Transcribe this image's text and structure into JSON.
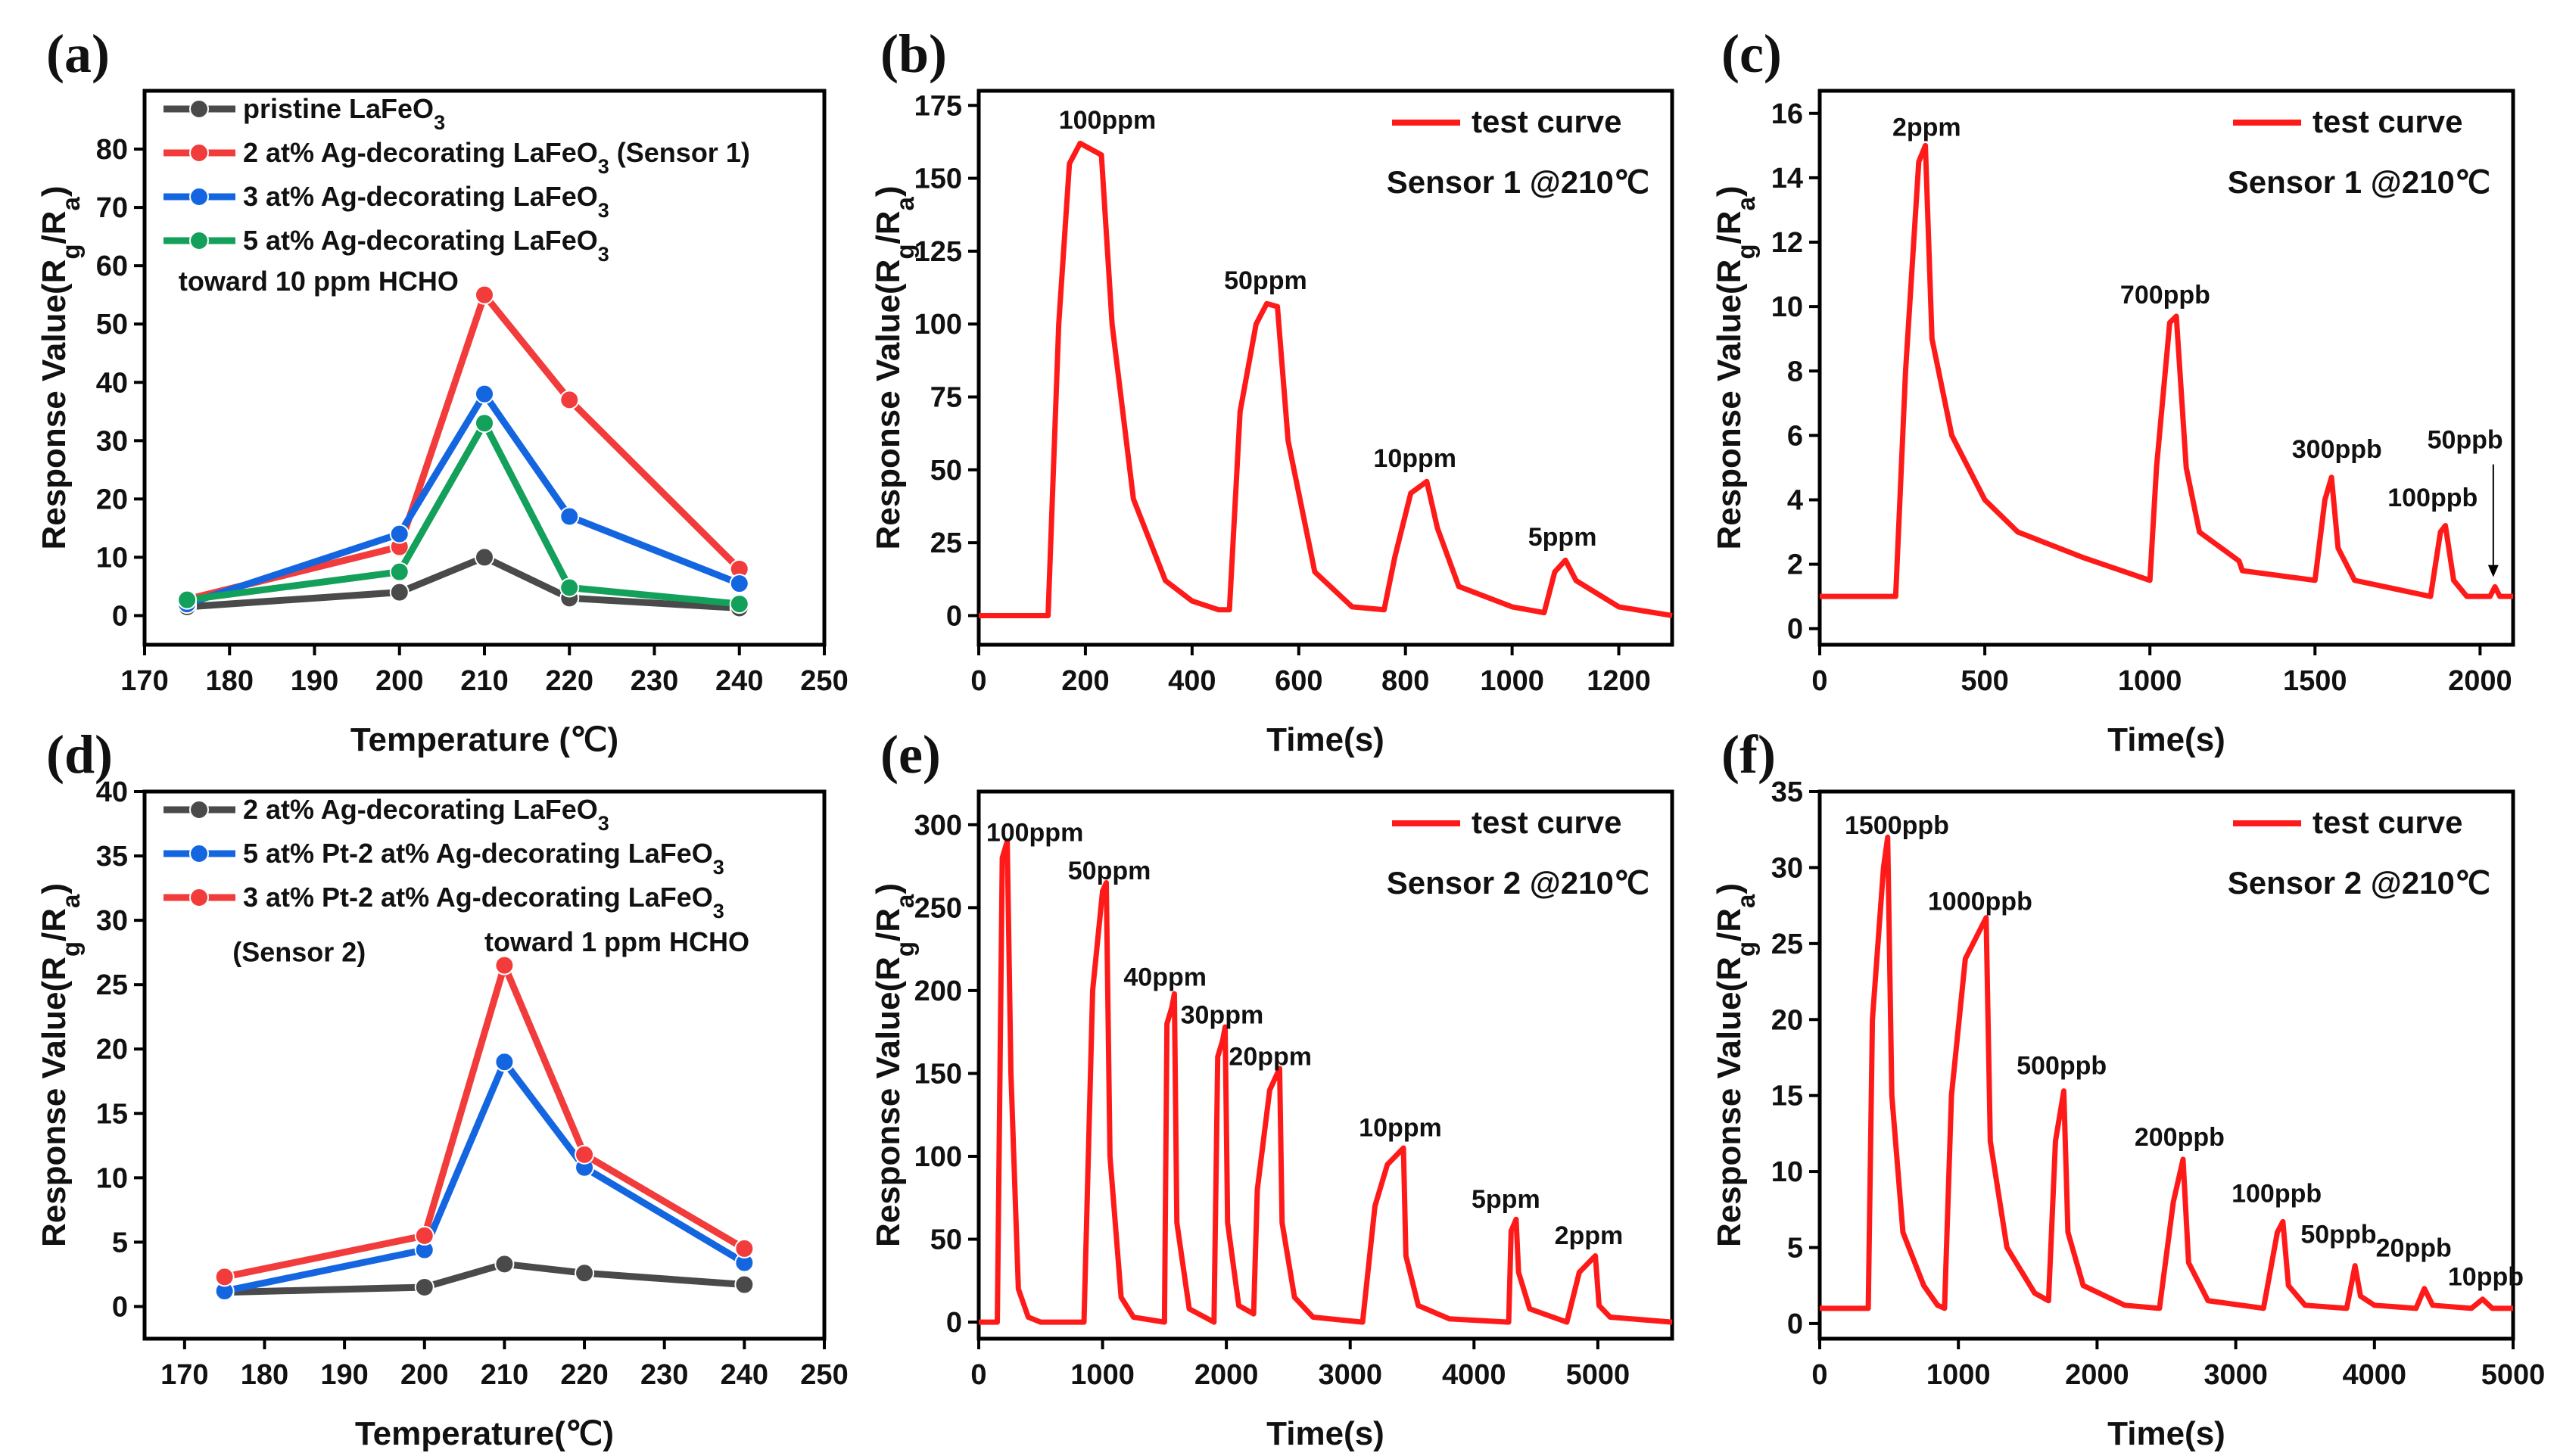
{
  "chart_data": [
    {
      "panel": "(a)",
      "type": "line",
      "xlabel": "Temperature (℃)",
      "ylabel": "Response Value(Rg/Ra)",
      "xlim": [
        170,
        250
      ],
      "ylim": [
        -5,
        90
      ],
      "xticks": [
        170,
        180,
        190,
        200,
        210,
        220,
        230,
        240,
        250
      ],
      "yticks": [
        0,
        10,
        20,
        30,
        40,
        50,
        60,
        70,
        80
      ],
      "x": [
        175,
        200,
        210,
        220,
        240
      ],
      "series": [
        {
          "name": "pristine LaFeO3",
          "color": "#4a4a4a",
          "values": [
            1.5,
            4,
            10,
            3,
            1.3
          ]
        },
        {
          "name": "2 at% Ag-decorating LaFeO3 (Sensor 1)",
          "color": "#f23c3c",
          "values": [
            2.8,
            11.8,
            55,
            37,
            8
          ]
        },
        {
          "name": "3 at% Ag-decorating LaFeO3",
          "color": "#1466e0",
          "values": [
            2,
            14,
            38,
            17,
            5.5
          ]
        },
        {
          "name": "5 at% Ag-decorating LaFeO3",
          "color": "#12a05a",
          "values": [
            2.7,
            7.5,
            33,
            4.8,
            2
          ]
        }
      ],
      "annotations": [
        {
          "text": "toward 10 ppm HCHO",
          "x": 174,
          "y": 62.5
        }
      ],
      "legend": "top-left"
    },
    {
      "panel": "(b)",
      "type": "line",
      "xlabel": "Time(s)",
      "ylabel": "Response Value(Rg/Ra)",
      "xlim": [
        0,
        1300
      ],
      "ylim": [
        -10,
        180
      ],
      "xticks": [
        0,
        200,
        400,
        600,
        800,
        1000,
        1200
      ],
      "yticks": [
        0,
        25,
        50,
        75,
        100,
        125,
        150,
        175
      ],
      "series": [
        {
          "name": "test curve",
          "color": "#ff1a1a",
          "points": [
            [
              0,
              0
            ],
            [
              130,
              0
            ],
            [
              150,
              100
            ],
            [
              170,
              155
            ],
            [
              190,
              162
            ],
            [
              230,
              158
            ],
            [
              250,
              100
            ],
            [
              290,
              40
            ],
            [
              350,
              12
            ],
            [
              400,
              5
            ],
            [
              450,
              2
            ],
            [
              470,
              2
            ],
            [
              490,
              70
            ],
            [
              520,
              100
            ],
            [
              540,
              107
            ],
            [
              560,
              106
            ],
            [
              580,
              60
            ],
            [
              630,
              15
            ],
            [
              700,
              3
            ],
            [
              760,
              2
            ],
            [
              780,
              20
            ],
            [
              810,
              42
            ],
            [
              840,
              46
            ],
            [
              860,
              30
            ],
            [
              900,
              10
            ],
            [
              1000,
              3
            ],
            [
              1060,
              1
            ],
            [
              1080,
              15
            ],
            [
              1100,
              19
            ],
            [
              1120,
              12
            ],
            [
              1200,
              3
            ],
            [
              1300,
              0
            ]
          ]
        }
      ],
      "subtitle": "Sensor 1 @210℃",
      "annotations": [
        {
          "text": "100ppm",
          "x": 150,
          "y": 167
        },
        {
          "text": "50ppm",
          "x": 460,
          "y": 112
        },
        {
          "text": "10ppm",
          "x": 740,
          "y": 51
        },
        {
          "text": "5ppm",
          "x": 1030,
          "y": 24
        }
      ],
      "legend": "top-right"
    },
    {
      "panel": "(c)",
      "type": "line",
      "xlabel": "Time(s)",
      "ylabel": "Response Value(Rg/Ra)",
      "xlim": [
        0,
        2100
      ],
      "ylim": [
        -0.5,
        16.7
      ],
      "xticks": [
        0,
        500,
        1000,
        1500,
        2000
      ],
      "yticks": [
        0,
        2,
        4,
        6,
        8,
        10,
        12,
        14,
        16
      ],
      "series": [
        {
          "name": "test curve",
          "color": "#ff1a1a",
          "points": [
            [
              0,
              1
            ],
            [
              230,
              1
            ],
            [
              260,
              8
            ],
            [
              300,
              14.5
            ],
            [
              320,
              15
            ],
            [
              340,
              9
            ],
            [
              400,
              6
            ],
            [
              500,
              4
            ],
            [
              600,
              3
            ],
            [
              800,
              2.2
            ],
            [
              1000,
              1.5
            ],
            [
              1020,
              5
            ],
            [
              1060,
              9.5
            ],
            [
              1080,
              9.7
            ],
            [
              1110,
              5
            ],
            [
              1150,
              3
            ],
            [
              1270,
              2.1
            ],
            [
              1280,
              1.8
            ],
            [
              1500,
              1.5
            ],
            [
              1530,
              4
            ],
            [
              1550,
              4.7
            ],
            [
              1570,
              2.5
            ],
            [
              1620,
              1.5
            ],
            [
              1850,
              1
            ],
            [
              1880,
              3
            ],
            [
              1895,
              3.2
            ],
            [
              1920,
              1.5
            ],
            [
              1960,
              1
            ],
            [
              2030,
              1
            ],
            [
              2045,
              1.3
            ],
            [
              2060,
              1
            ],
            [
              2100,
              1
            ]
          ]
        }
      ],
      "subtitle": "Sensor 1 @210℃",
      "annotations": [
        {
          "text": "2ppm",
          "x": 220,
          "y": 15.3
        },
        {
          "text": "700ppb",
          "x": 910,
          "y": 10.1
        },
        {
          "text": "300ppb",
          "x": 1430,
          "y": 5.3
        },
        {
          "text": "100ppb",
          "x": 1720,
          "y": 3.8
        },
        {
          "text": "50ppb",
          "x": 1840,
          "y": 5.6
        }
      ],
      "arrow": {
        "from": [
          2040,
          5.1
        ],
        "to": [
          2040,
          1.6
        ]
      },
      "legend": "top-right"
    },
    {
      "panel": "(d)",
      "type": "line",
      "xlabel": "Temperature(℃)",
      "ylabel": "Response Value(Rg/Ra)",
      "xlim": [
        165,
        250
      ],
      "ylim": [
        -2.5,
        40
      ],
      "xticks": [
        170,
        180,
        190,
        200,
        210,
        220,
        230,
        240,
        250
      ],
      "yticks": [
        0,
        5,
        10,
        15,
        20,
        25,
        30,
        35,
        40
      ],
      "x": [
        175,
        200,
        210,
        220,
        240
      ],
      "series": [
        {
          "name": "2 at% Ag-decorating LaFeO3",
          "color": "#4a4a4a",
          "values": [
            1.1,
            1.5,
            3.3,
            2.6,
            1.7
          ]
        },
        {
          "name": "5 at% Pt-2 at% Ag-decorating LaFeO3",
          "color": "#1466e0",
          "values": [
            1.2,
            4.4,
            19,
            10.8,
            3.4
          ]
        },
        {
          "name": "3 at% Pt-2 at% Ag-decorating LaFeO3",
          "color": "#f23c3c",
          "values": [
            2.3,
            5.5,
            26.5,
            11.8,
            4.5
          ]
        }
      ],
      "annotations": [
        {
          "text": "(Sensor 2)",
          "x": 176,
          "y": 26.8
        },
        {
          "text": "toward 1 ppm HCHO",
          "x": 207.5,
          "y": 27.6
        }
      ],
      "legend": "top-left"
    },
    {
      "panel": "(e)",
      "type": "line",
      "xlabel": "Time(s)",
      "ylabel": "Response Value(Rg/Ra)",
      "xlim": [
        0,
        5600
      ],
      "ylim": [
        -10,
        320
      ],
      "xticks": [
        0,
        1000,
        2000,
        3000,
        4000,
        5000
      ],
      "yticks": [
        0,
        50,
        100,
        150,
        200,
        250,
        300
      ],
      "series": [
        {
          "name": "test curve",
          "color": "#ff1a1a",
          "points": [
            [
              0,
              0
            ],
            [
              150,
              0
            ],
            [
              190,
              280
            ],
            [
              230,
              290
            ],
            [
              260,
              150
            ],
            [
              320,
              20
            ],
            [
              400,
              3
            ],
            [
              500,
              0
            ],
            [
              850,
              0
            ],
            [
              920,
              200
            ],
            [
              1000,
              260
            ],
            [
              1030,
              265
            ],
            [
              1060,
              100
            ],
            [
              1150,
              15
            ],
            [
              1250,
              3
            ],
            [
              1500,
              0
            ],
            [
              1520,
              180
            ],
            [
              1560,
              190
            ],
            [
              1580,
              198
            ],
            [
              1600,
              60
            ],
            [
              1700,
              8
            ],
            [
              1900,
              0
            ],
            [
              1930,
              160
            ],
            [
              1970,
              170
            ],
            [
              1990,
              178
            ],
            [
              2010,
              60
            ],
            [
              2100,
              10
            ],
            [
              2220,
              5
            ],
            [
              2250,
              80
            ],
            [
              2350,
              140
            ],
            [
              2430,
              153
            ],
            [
              2450,
              60
            ],
            [
              2550,
              15
            ],
            [
              2700,
              3
            ],
            [
              3100,
              0
            ],
            [
              3200,
              70
            ],
            [
              3300,
              95
            ],
            [
              3430,
              105
            ],
            [
              3450,
              40
            ],
            [
              3550,
              10
            ],
            [
              3800,
              2
            ],
            [
              4280,
              0
            ],
            [
              4300,
              55
            ],
            [
              4340,
              62
            ],
            [
              4360,
              30
            ],
            [
              4450,
              8
            ],
            [
              4750,
              0
            ],
            [
              4850,
              30
            ],
            [
              4980,
              40
            ],
            [
              5010,
              10
            ],
            [
              5100,
              3
            ],
            [
              5600,
              0
            ]
          ]
        }
      ],
      "subtitle": "Sensor 2 @210℃",
      "annotations": [
        {
          "text": "100ppm",
          "x": 60,
          "y": 290
        },
        {
          "text": "50ppm",
          "x": 720,
          "y": 267
        },
        {
          "text": "40ppm",
          "x": 1170,
          "y": 203
        },
        {
          "text": "30ppm",
          "x": 1630,
          "y": 180
        },
        {
          "text": "20ppm",
          "x": 2020,
          "y": 155
        },
        {
          "text": "10ppm",
          "x": 3070,
          "y": 112
        },
        {
          "text": "5ppm",
          "x": 3980,
          "y": 69
        },
        {
          "text": "2ppm",
          "x": 4650,
          "y": 47
        }
      ],
      "legend": "top-right"
    },
    {
      "panel": "(f)",
      "type": "line",
      "xlabel": "Time(s)",
      "ylabel": "Response Value(Rg/Ra)",
      "xlim": [
        0,
        5000
      ],
      "ylim": [
        -1,
        35
      ],
      "xticks": [
        0,
        1000,
        2000,
        3000,
        4000,
        5000
      ],
      "yticks": [
        0,
        5,
        10,
        15,
        20,
        25,
        30,
        35
      ],
      "series": [
        {
          "name": "test curve",
          "color": "#ff1a1a",
          "points": [
            [
              0,
              1
            ],
            [
              350,
              1
            ],
            [
              380,
              20
            ],
            [
              460,
              30
            ],
            [
              490,
              32
            ],
            [
              520,
              15
            ],
            [
              600,
              6
            ],
            [
              750,
              2.5
            ],
            [
              850,
              1.2
            ],
            [
              900,
              1
            ],
            [
              950,
              15
            ],
            [
              1050,
              24
            ],
            [
              1200,
              26.7
            ],
            [
              1230,
              12
            ],
            [
              1350,
              5
            ],
            [
              1550,
              2
            ],
            [
              1650,
              1.5
            ],
            [
              1700,
              12
            ],
            [
              1760,
              15.3
            ],
            [
              1790,
              6
            ],
            [
              1900,
              2.5
            ],
            [
              2200,
              1.2
            ],
            [
              2450,
              1
            ],
            [
              2550,
              8
            ],
            [
              2620,
              10.8
            ],
            [
              2660,
              4
            ],
            [
              2800,
              1.5
            ],
            [
              3200,
              1
            ],
            [
              3300,
              6
            ],
            [
              3340,
              6.7
            ],
            [
              3380,
              2.5
            ],
            [
              3500,
              1.2
            ],
            [
              3800,
              1
            ],
            [
              3860,
              3.8
            ],
            [
              3900,
              1.8
            ],
            [
              4000,
              1.2
            ],
            [
              4300,
              1
            ],
            [
              4360,
              2.3
            ],
            [
              4420,
              1.2
            ],
            [
              4700,
              1
            ],
            [
              4780,
              1.6
            ],
            [
              4850,
              1
            ],
            [
              5000,
              1
            ]
          ]
        }
      ],
      "subtitle": "Sensor 2 @210℃",
      "annotations": [
        {
          "text": "1500ppb",
          "x": 180,
          "y": 32.2
        },
        {
          "text": "1000ppb",
          "x": 780,
          "y": 27.2
        },
        {
          "text": "500ppb",
          "x": 1420,
          "y": 16.4
        },
        {
          "text": "200ppb",
          "x": 2270,
          "y": 11.7
        },
        {
          "text": "100ppb",
          "x": 2970,
          "y": 8
        },
        {
          "text": "50ppb",
          "x": 3490,
          "y": 5.3
        },
        {
          "text": "20ppb",
          "x": 4010,
          "y": 4.4
        },
        {
          "text": "10ppb",
          "x": 4530,
          "y": 2.5
        }
      ],
      "legend": "top-right"
    }
  ]
}
